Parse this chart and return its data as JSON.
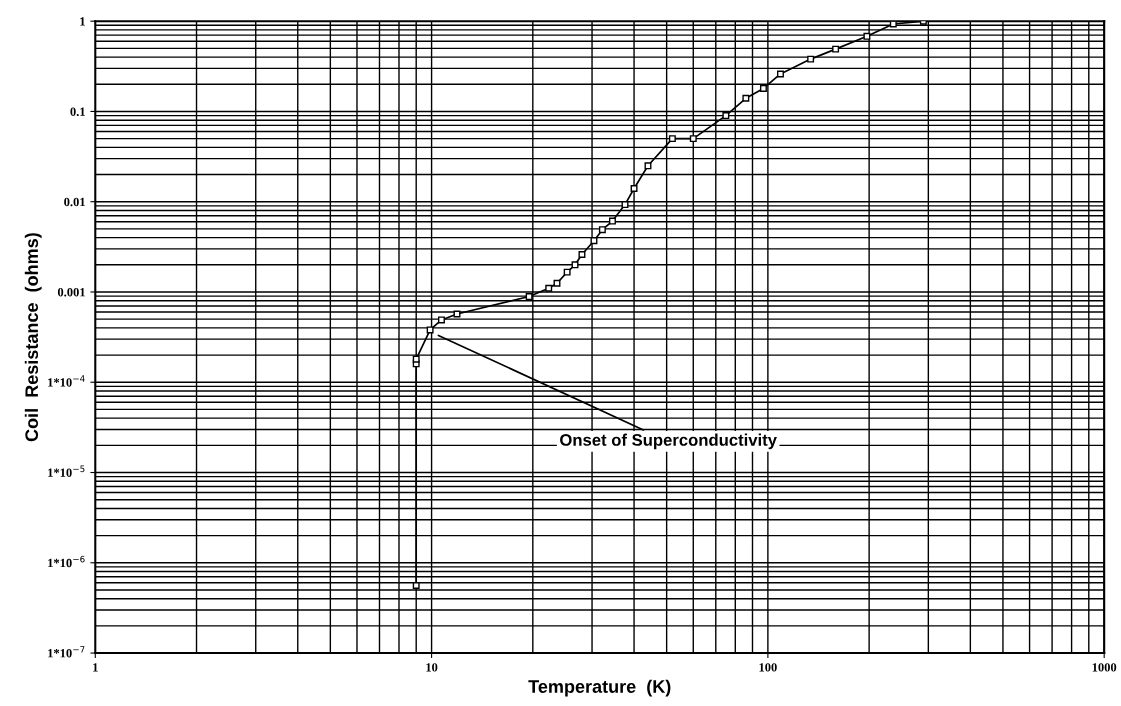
{
  "chart_data": {
    "type": "line",
    "xlabel": "Temperature  (K)",
    "ylabel": "Coil  Resistance  (ohms)",
    "log": "xy",
    "grid": true,
    "marker": "square",
    "line_style": "solid",
    "xlim": [
      1,
      1000
    ],
    "xticks": [
      1,
      10,
      100,
      1000
    ],
    "ylim": [
      1e-07,
      1
    ],
    "yticks": [
      {
        "value": 1e-07,
        "label": "1*10$^{−7}$"
      },
      {
        "value": 1e-06,
        "label": "1*10$^{−6}$"
      },
      {
        "value": 1e-05,
        "label": "1*10$^{−5}$"
      },
      {
        "value": 0.0001,
        "label": "1*10$^{−4}$"
      },
      {
        "value": 0.001,
        "label": "0.001"
      },
      {
        "value": 0.01,
        "label": "0.01"
      },
      {
        "value": 0.1,
        "label": "0.1"
      },
      {
        "value": 1,
        "label": "1"
      }
    ],
    "series": [
      {
        "color": "#000000",
        "x": [
          9.0,
          9.0,
          9.0,
          9.9,
          10.7,
          11.9,
          19.5,
          22.3,
          23.6,
          25.3,
          26.7,
          28.0,
          30.4,
          32.2,
          34.5,
          37.6,
          40,
          44,
          52,
          60,
          75,
          86,
          97,
          109,
          134,
          159,
          197,
          236,
          290
        ],
        "values": [
          5.6e-07,
          0.00016,
          0.00018,
          0.00038,
          0.00049,
          0.00057,
          0.00089,
          0.0011,
          0.00125,
          0.00166,
          0.002,
          0.0026,
          0.0037,
          0.0049,
          0.0061,
          0.0093,
          0.014,
          0.025,
          0.05,
          0.05,
          0.09,
          0.14,
          0.18,
          0.26,
          0.38,
          0.49,
          0.68,
          0.93,
          1
        ]
      }
    ],
    "annotations": [
      {
        "text": "Onset of Superconductivity",
        "x": 10.3,
        "y": 0.00034
      }
    ]
  }
}
